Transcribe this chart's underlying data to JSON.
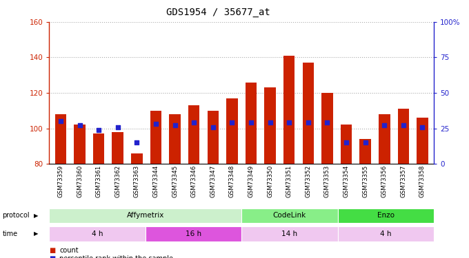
{
  "title": "GDS1954 / 35677_at",
  "samples": [
    "GSM73359",
    "GSM73360",
    "GSM73361",
    "GSM73362",
    "GSM73363",
    "GSM73344",
    "GSM73345",
    "GSM73346",
    "GSM73347",
    "GSM73348",
    "GSM73349",
    "GSM73350",
    "GSM73351",
    "GSM73352",
    "GSM73353",
    "GSM73354",
    "GSM73355",
    "GSM73356",
    "GSM73357",
    "GSM73358"
  ],
  "count_values": [
    108,
    102,
    97,
    98,
    86,
    110,
    108,
    113,
    110,
    117,
    126,
    123,
    141,
    137,
    120,
    102,
    94,
    108,
    111,
    106
  ],
  "percentile_values": [
    30,
    27,
    24,
    26,
    15,
    28,
    27,
    29,
    26,
    29,
    29,
    29,
    29,
    29,
    29,
    15,
    15,
    27,
    27,
    26
  ],
  "ymin": 80,
  "ymax": 160,
  "yticks_left": [
    80,
    100,
    120,
    140,
    160
  ],
  "right_yticks_pct": [
    0,
    25,
    50,
    75,
    100
  ],
  "protocol_groups": [
    {
      "label": "Affymetrix",
      "start": 0,
      "end": 9,
      "color": "#ccf0cc"
    },
    {
      "label": "CodeLink",
      "start": 10,
      "end": 14,
      "color": "#88ee88"
    },
    {
      "label": "Enzo",
      "start": 15,
      "end": 19,
      "color": "#44dd44"
    }
  ],
  "time_groups": [
    {
      "label": "4 h",
      "start": 0,
      "end": 4,
      "color": "#f0c8f0"
    },
    {
      "label": "16 h",
      "start": 5,
      "end": 9,
      "color": "#dd55dd"
    },
    {
      "label": "14 h",
      "start": 10,
      "end": 14,
      "color": "#f0c8f0"
    },
    {
      "label": "4 h",
      "start": 15,
      "end": 19,
      "color": "#f0c8f0"
    }
  ],
  "bar_color": "#cc2200",
  "dot_color": "#2222cc",
  "bg_color": "#ffffff",
  "axis_color_left": "#cc2200",
  "axis_color_right": "#2222cc",
  "grid_color": "#aaaaaa"
}
